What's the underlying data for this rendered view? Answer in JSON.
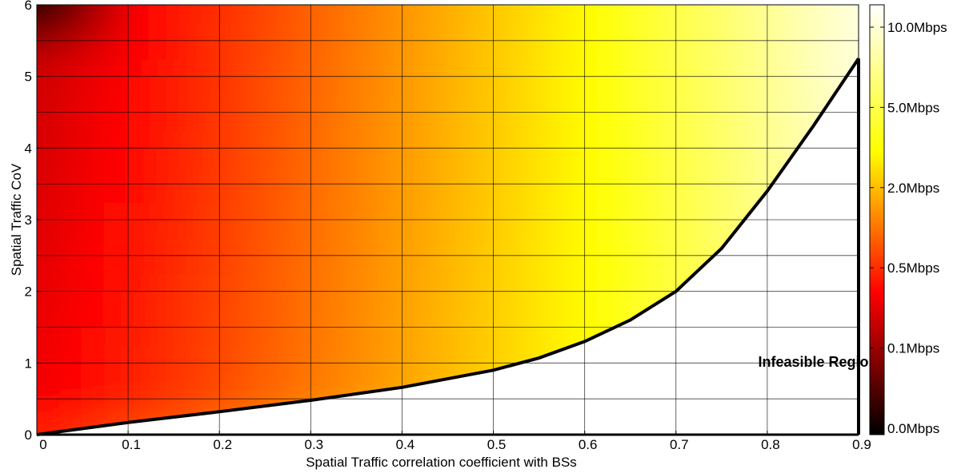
{
  "chart_data": {
    "type": "heatmap",
    "title": "",
    "xlabel": "Spatial Traffic correlation coefficient with BSs",
    "ylabel": "Spatial Traffic CoV",
    "xlim": [
      0,
      0.9
    ],
    "ylim": [
      0,
      6
    ],
    "xticks": [
      "0",
      "0.1",
      "0.2",
      "0.3",
      "0.4",
      "0.5",
      "0.6",
      "0.7",
      "0.8",
      "0.9"
    ],
    "yticks": [
      "0",
      "1",
      "2",
      "3",
      "4",
      "5",
      "6"
    ],
    "grid": true,
    "colormap": "hot",
    "colorbar": {
      "position": "right",
      "labels": [
        "0.0Mbps",
        "0.1Mbps",
        "0.5Mbps",
        "2.0Mbps",
        "5.0Mbps",
        "10.0Mbps"
      ]
    },
    "boundary": {
      "name": "feasibility boundary",
      "x": [
        0,
        0.1,
        0.2,
        0.3,
        0.4,
        0.5,
        0.55,
        0.6,
        0.65,
        0.7,
        0.75,
        0.8,
        0.85,
        0.9
      ],
      "y": [
        0,
        0.17,
        0.32,
        0.48,
        0.66,
        0.9,
        1.07,
        1.3,
        1.6,
        2.0,
        2.6,
        3.4,
        4.3,
        5.25
      ]
    },
    "annotations": [
      {
        "text": "Infeasible Region",
        "x": 0.79,
        "y": 0.95
      }
    ]
  }
}
